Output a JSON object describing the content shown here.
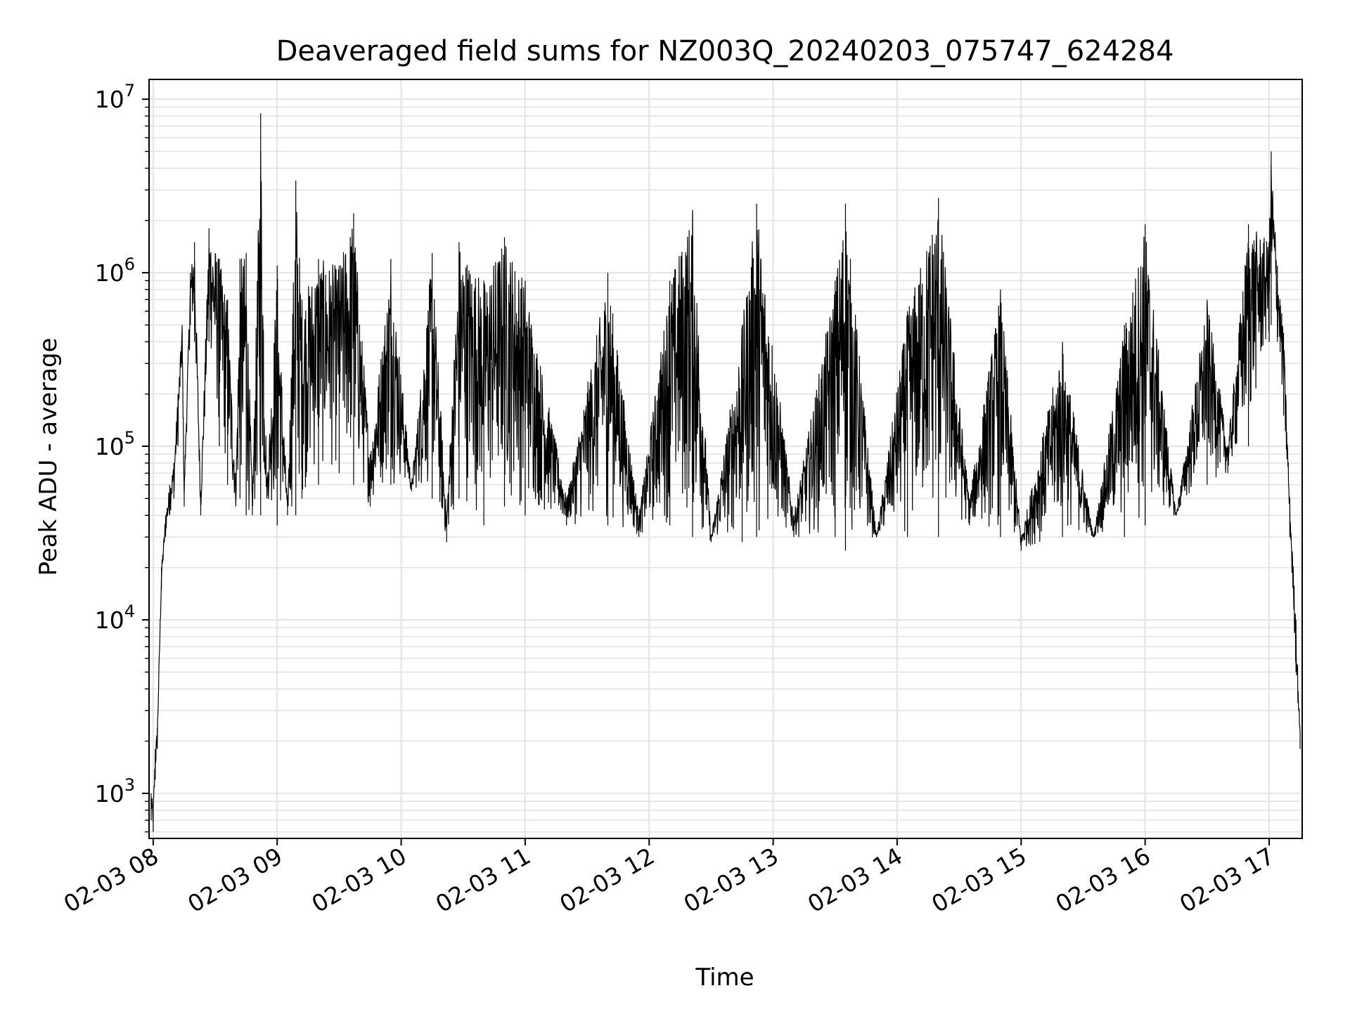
{
  "chart_data": {
    "type": "line",
    "title": "Deaveraged field sums for NZ003Q_20240203_075747_624284",
    "xlabel": "Time",
    "ylabel": "Peak ADU - average",
    "yscale": "log",
    "ylim": [
      550,
      13000000
    ],
    "xlim": [
      "2024-02-03 07:58",
      "2024-02-03 17:16"
    ],
    "grid": true,
    "grid_minor": true,
    "line_color": "#000000",
    "x_tick_labels": [
      "02-03 08",
      "02-03 09",
      "02-03 10",
      "02-03 11",
      "02-03 12",
      "02-03 13",
      "02-03 14",
      "02-03 15",
      "02-03 16",
      "02-03 17"
    ],
    "y_tick_labels": [
      {
        "base": "10",
        "exp": "3",
        "value": 1000
      },
      {
        "base": "10",
        "exp": "4",
        "value": 10000
      },
      {
        "base": "10",
        "exp": "5",
        "value": 100000
      },
      {
        "base": "10",
        "exp": "6",
        "value": 1000000
      },
      {
        "base": "10",
        "exp": "7",
        "value": 10000000
      }
    ],
    "series": [
      {
        "x": [
          "2024-02-03 07:59",
          "2024-02-03 08:00",
          "2024-02-03 08:01",
          "2024-02-03 08:02",
          "2024-02-03 08:04",
          "2024-02-03 08:06",
          "2024-02-03 08:08",
          "2024-02-03 08:10",
          "2024-02-03 08:12",
          "2024-02-03 08:14",
          "2024-02-03 08:15",
          "2024-02-03 08:18",
          "2024-02-03 08:20",
          "2024-02-03 08:23",
          "2024-02-03 08:27",
          "2024-02-03 08:32",
          "2024-02-03 08:36",
          "2024-02-03 08:40",
          "2024-02-03 08:42",
          "2024-02-03 08:45",
          "2024-02-03 08:48",
          "2024-02-03 08:52",
          "2024-02-03 08:55",
          "2024-02-03 09:00",
          "2024-02-03 09:05",
          "2024-02-03 09:09",
          "2024-02-03 09:12",
          "2024-02-03 09:20",
          "2024-02-03 09:30",
          "2024-02-03 09:37",
          "2024-02-03 09:45",
          "2024-02-03 09:55",
          "2024-02-03 10:05",
          "2024-02-03 10:15",
          "2024-02-03 10:22",
          "2024-02-03 10:28",
          "2024-02-03 10:40",
          "2024-02-03 10:50",
          "2024-02-03 11:00",
          "2024-02-03 11:20",
          "2024-02-03 11:40",
          "2024-02-03 11:55",
          "2024-02-03 12:10",
          "2024-02-03 12:21",
          "2024-02-03 12:30",
          "2024-02-03 12:45",
          "2024-02-03 12:52",
          "2024-02-03 13:10",
          "2024-02-03 13:30",
          "2024-02-03 13:35",
          "2024-02-03 13:50",
          "2024-02-03 14:05",
          "2024-02-03 14:20",
          "2024-02-03 14:35",
          "2024-02-03 14:50",
          "2024-02-03 15:00",
          "2024-02-03 15:20",
          "2024-02-03 15:35",
          "2024-02-03 15:50",
          "2024-02-03 16:00",
          "2024-02-03 16:15",
          "2024-02-03 16:30",
          "2024-02-03 16:40",
          "2024-02-03 16:50",
          "2024-02-03 17:00",
          "2024-02-03 17:01",
          "2024-02-03 17:04",
          "2024-02-03 17:07",
          "2024-02-03 17:10",
          "2024-02-03 17:13",
          "2024-02-03 17:15"
        ],
        "y": [
          1000,
          850,
          1800,
          2400,
          20000,
          40000,
          60000,
          80000,
          200000,
          500000,
          60000,
          1000000,
          1500000,
          50000,
          1800000,
          1200000,
          700000,
          60000,
          1200000,
          1300000,
          50000,
          8300000,
          60000,
          1100000,
          45000,
          3400000,
          700000,
          1200000,
          1100000,
          2200000,
          90000,
          1200000,
          60000,
          1300000,
          40000,
          1500000,
          900000,
          1600000,
          900000,
          50000,
          1000000,
          40000,
          900000,
          2300000,
          30000,
          500000,
          2500000,
          40000,
          900000,
          2500000,
          30000,
          600000,
          2700000,
          50000,
          800000,
          30000,
          400000,
          30000,
          500000,
          1900000,
          40000,
          700000,
          100000,
          1900000,
          1500000,
          5000000,
          1100000,
          450000,
          50000,
          10000,
          2200
        ],
        "y_low": [
          700,
          600,
          1200,
          1800,
          15000,
          30000,
          40000,
          50000,
          100000,
          300000,
          45000,
          500000,
          400000,
          40000,
          400000,
          100000,
          60000,
          45000,
          50000,
          40000,
          40000,
          40000,
          50000,
          35000,
          40000,
          40000,
          50000,
          60000,
          70000,
          60000,
          45000,
          60000,
          55000,
          50000,
          28000,
          50000,
          35000,
          45000,
          40000,
          35000,
          35000,
          30000,
          35000,
          30000,
          28000,
          28000,
          30000,
          30000,
          30000,
          25000,
          30000,
          30000,
          30000,
          35000,
          30000,
          25000,
          30000,
          30000,
          30000,
          35000,
          40000,
          60000,
          70000,
          100000,
          400000,
          500000,
          400000,
          150000,
          30000,
          5000,
          1800
        ]
      }
    ]
  }
}
